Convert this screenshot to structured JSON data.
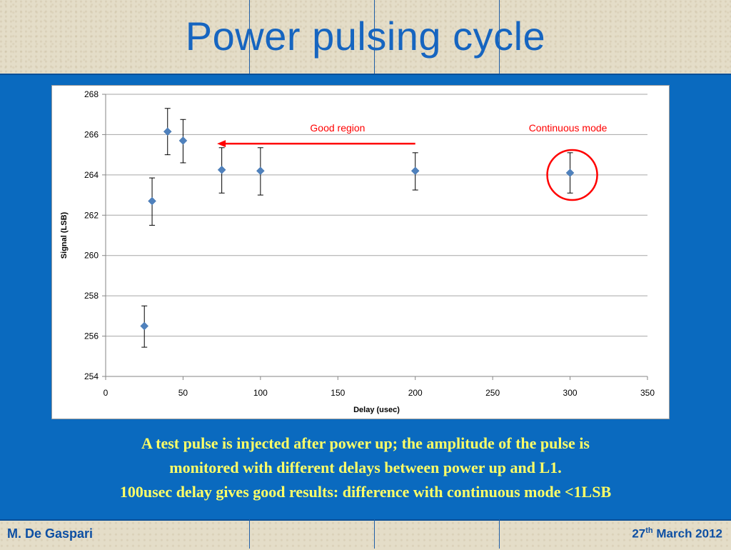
{
  "slide": {
    "title": "Power pulsing cycle",
    "caption_lines": [
      "A test pulse is injected after power up; the amplitude of the pulse is",
      "monitored with different delays between power up and L1.",
      "100usec delay gives good results: difference with continuous mode <1LSB"
    ],
    "author": "M. De Gaspari",
    "date_day": "27",
    "date_suffix": "th",
    "date_rest": " March 2012"
  },
  "chart_data": {
    "type": "scatter",
    "xlabel": "Delay (usec)",
    "ylabel": "Signal (LSB)",
    "xlim": [
      0,
      350
    ],
    "ylim": [
      254,
      268
    ],
    "xticks": [
      0,
      50,
      100,
      150,
      200,
      250,
      300,
      350
    ],
    "yticks": [
      254,
      256,
      258,
      260,
      262,
      264,
      266,
      268
    ],
    "grid": "horizontal",
    "marker_color": "#4f81bd",
    "annotation_color": "#ff0000",
    "points": [
      {
        "x": 25,
        "y": 256.5,
        "err_low": 255.45,
        "err_high": 257.5
      },
      {
        "x": 30,
        "y": 262.7,
        "err_low": 261.5,
        "err_high": 263.85
      },
      {
        "x": 40,
        "y": 266.15,
        "err_low": 265.0,
        "err_high": 267.3
      },
      {
        "x": 50,
        "y": 265.7,
        "err_low": 264.6,
        "err_high": 266.75
      },
      {
        "x": 75,
        "y": 264.25,
        "err_low": 263.1,
        "err_high": 265.35
      },
      {
        "x": 100,
        "y": 264.2,
        "err_low": 263.0,
        "err_high": 265.35
      },
      {
        "x": 200,
        "y": 264.2,
        "err_low": 263.25,
        "err_high": 265.1
      },
      {
        "x": 300,
        "y": 264.1,
        "err_low": 263.1,
        "err_high": 265.1
      }
    ],
    "annotations": [
      {
        "text": "Good region",
        "kind": "arrow",
        "from_x": 200,
        "to_x": 72,
        "y": 265.55
      },
      {
        "text": "Continuous mode",
        "kind": "circle",
        "x": 300,
        "y": 264.1
      }
    ]
  }
}
